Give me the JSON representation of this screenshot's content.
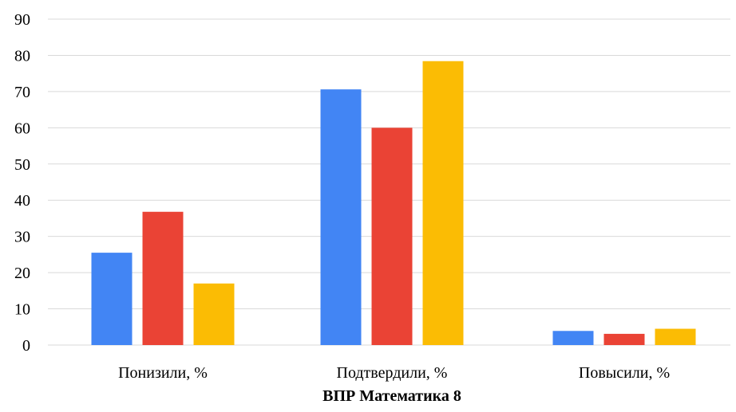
{
  "chart_data": {
    "type": "bar",
    "categories": [
      "Понизили, %",
      "Подтвердили, %",
      "Повысили, %"
    ],
    "series": [
      {
        "values": [
          25.5,
          70.6,
          3.9
        ]
      },
      {
        "values": [
          36.8,
          60.0,
          3.1
        ]
      },
      {
        "values": [
          17.0,
          78.4,
          4.5
        ]
      }
    ],
    "colors": [
      "#4285f4",
      "#ea4335",
      "#fbbc04"
    ],
    "yticks": [
      "0",
      "10",
      "20",
      "30",
      "40",
      "50",
      "60",
      "70",
      "80",
      "90"
    ],
    "ylim": [
      0,
      90
    ],
    "grid": true,
    "xlabel": "ВПР Математика 8",
    "ylabel": "",
    "title": ""
  }
}
